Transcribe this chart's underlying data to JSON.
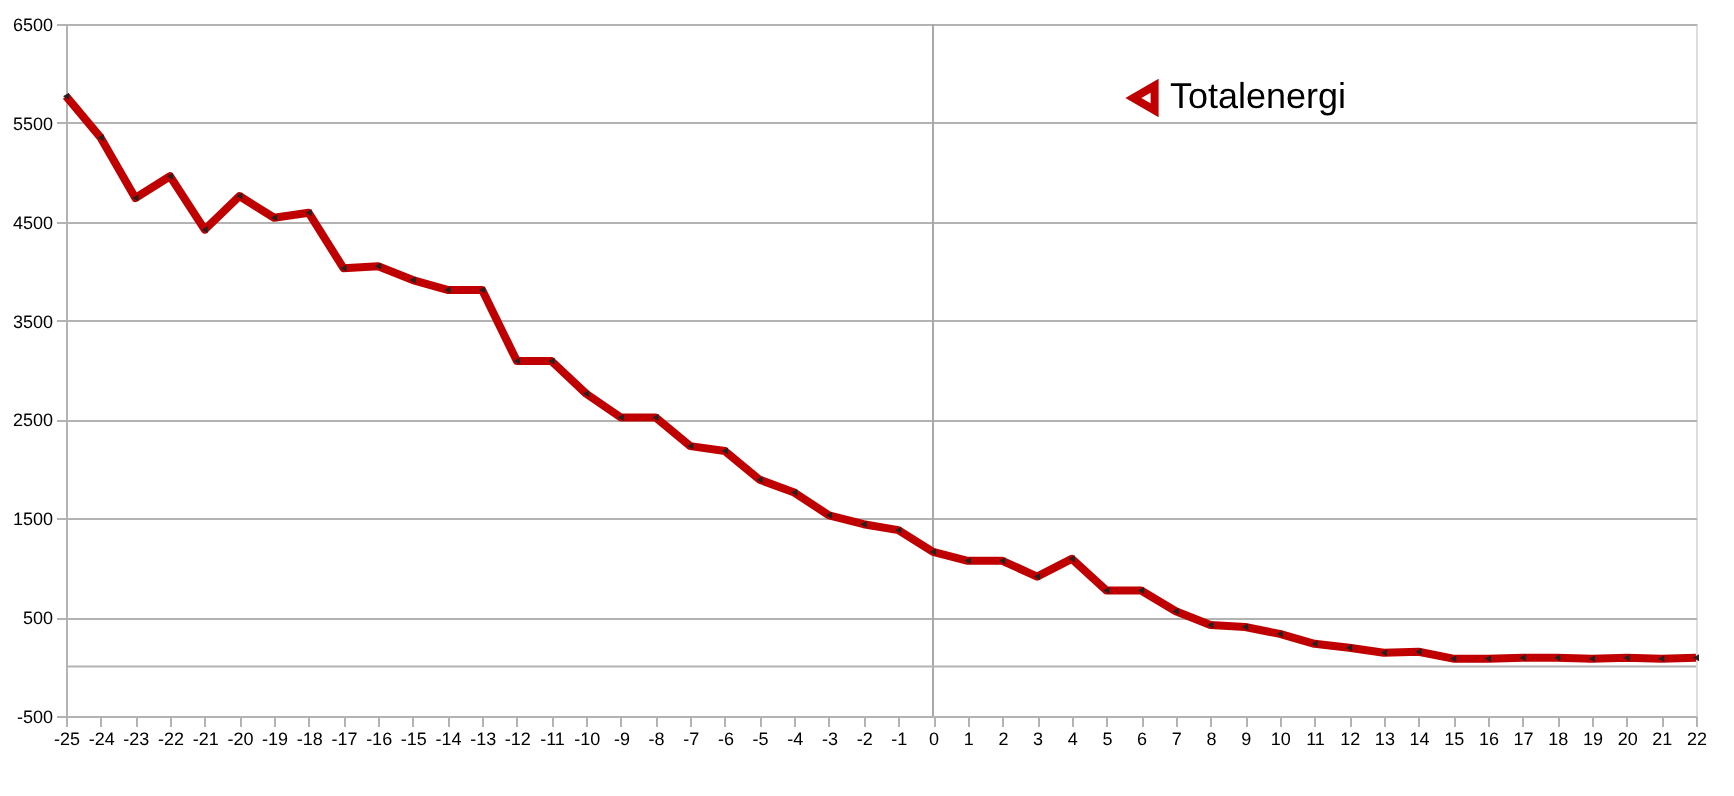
{
  "chart_data": {
    "type": "line",
    "x": [
      -25,
      -24,
      -23,
      -22,
      -21,
      -20,
      -19,
      -18,
      -17,
      -16,
      -15,
      -14,
      -13,
      -12,
      -11,
      -10,
      -9,
      -8,
      -7,
      -6,
      -5,
      -4,
      -3,
      -2,
      -1,
      0,
      1,
      2,
      3,
      4,
      5,
      6,
      7,
      8,
      9,
      10,
      11,
      12,
      13,
      14,
      15,
      16,
      17,
      18,
      19,
      20,
      21,
      22
    ],
    "series": [
      {
        "name": "Totalenergi",
        "color": "#c00000",
        "values": [
          5770,
          5350,
          4740,
          4960,
          4420,
          4760,
          4540,
          4590,
          4030,
          4050,
          3910,
          3810,
          3810,
          3090,
          3090,
          2760,
          2520,
          2520,
          2230,
          2180,
          1890,
          1760,
          1530,
          1440,
          1380,
          1160,
          1070,
          1070,
          910,
          1090,
          770,
          770,
          560,
          420,
          400,
          330,
          230,
          190,
          140,
          150,
          80,
          80,
          90,
          90,
          80,
          90,
          80,
          90
        ]
      }
    ],
    "xlim": [
      -25,
      22
    ],
    "xticks": [
      -25,
      -24,
      -23,
      -22,
      -21,
      -20,
      -19,
      -18,
      -17,
      -16,
      -15,
      -14,
      -13,
      -12,
      -11,
      -10,
      -9,
      -8,
      -7,
      -6,
      -5,
      -4,
      -3,
      -2,
      -1,
      0,
      1,
      2,
      3,
      4,
      5,
      6,
      7,
      8,
      9,
      10,
      11,
      12,
      13,
      14,
      15,
      16,
      17,
      18,
      19,
      20,
      21,
      22
    ],
    "ylim": [
      -500,
      6500
    ],
    "yticks": [
      -500,
      500,
      1500,
      2500,
      3500,
      4500,
      5500,
      6500
    ],
    "grid": "y",
    "legend": "top right",
    "marker": "triangle",
    "line_style": "solid",
    "ref_lines": [
      {
        "axis": "y",
        "value": 0,
        "color": "#b3b3b3"
      },
      {
        "axis": "x",
        "value": 0,
        "color": "#a9a9a9"
      }
    ]
  }
}
